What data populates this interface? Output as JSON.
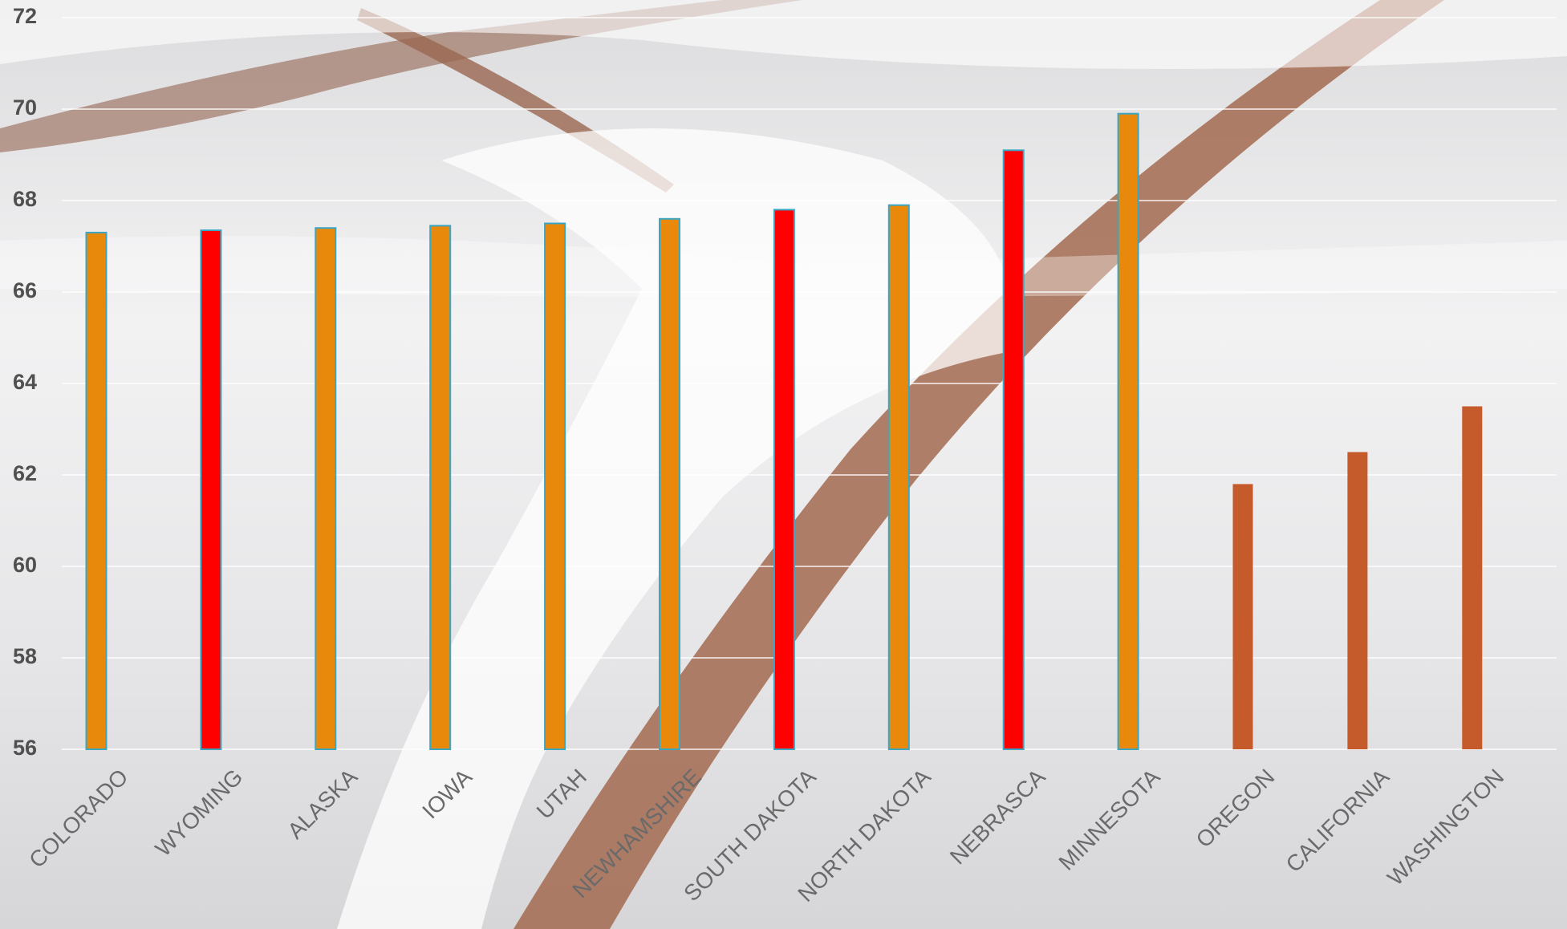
{
  "chart_data": {
    "type": "bar",
    "categories": [
      "COLORADO",
      "WYOMING",
      "ALASKA",
      "IOWA",
      "UTAH",
      "NEWHAMSHIRE",
      "SOUTH DAKOTA",
      "NORTH DAKOTA",
      "NEBRASCA",
      "MINNESOTA",
      "OREGON",
      "CALIFORNIA",
      "WASHINGTON"
    ],
    "values": [
      67.3,
      67.35,
      67.4,
      67.45,
      67.5,
      67.6,
      67.8,
      67.9,
      69.1,
      69.9,
      61.8,
      62.5,
      63.5
    ],
    "colors": [
      "#e8890c",
      "#ff0000",
      "#e8890c",
      "#e8890c",
      "#e8890c",
      "#e8890c",
      "#ff0000",
      "#e8890c",
      "#ff0000",
      "#e8890c",
      "#c55a2b",
      "#c55a2b",
      "#c55a2b"
    ],
    "outlined": [
      true,
      true,
      true,
      true,
      true,
      true,
      true,
      true,
      true,
      true,
      false,
      false,
      false
    ],
    "edgecolor": "#3aa6c4",
    "ylim": [
      56,
      72
    ],
    "yticks": [
      56,
      58,
      60,
      62,
      64,
      66,
      68,
      70,
      72
    ],
    "grid": true
  }
}
